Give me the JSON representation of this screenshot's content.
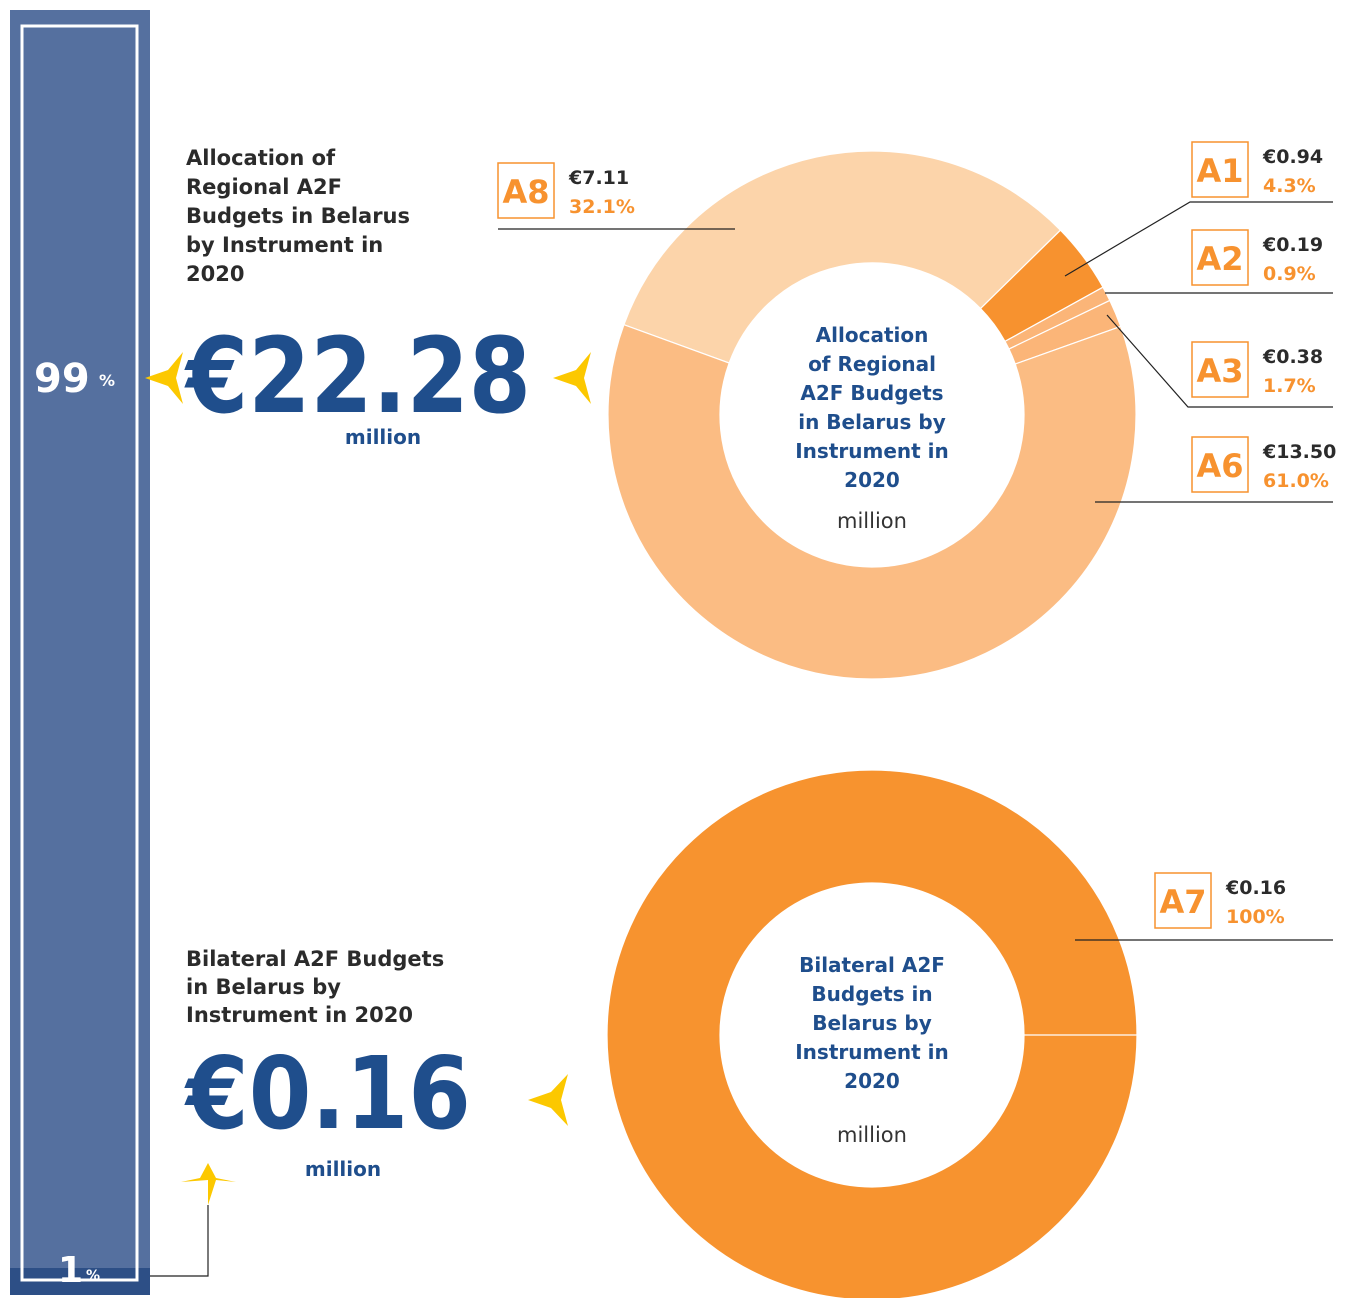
{
  "sidebar": {
    "top_value": "99",
    "top_unit": "%",
    "bottom_value": "1",
    "bottom_unit": "%"
  },
  "summaries": [
    {
      "heading_lines": [
        "Allocation of",
        "Regional A2F",
        "Budgets in Belarus",
        "by Instrument in",
        "2020"
      ],
      "amount": "€22.28",
      "unit": "million"
    },
    {
      "heading_lines": [
        "Bilateral A2F Budgets",
        "in Belarus by",
        "Instrument in 2020"
      ],
      "amount": "€0.16",
      "unit": "million"
    }
  ],
  "chart_data": [
    {
      "type": "pie",
      "donut": true,
      "title_lines": [
        "Allocation",
        "of Regional",
        "A2F Budgets",
        "in Belarus by",
        "Instrument in",
        "2020"
      ],
      "center_unit": "million",
      "categories": [
        "A8",
        "A1",
        "A2",
        "A3",
        "A6"
      ],
      "values": [
        32.1,
        4.3,
        0.9,
        1.7,
        61.0
      ],
      "value_labels": [
        "32.1%",
        "4.3%",
        "0.9%",
        "1.7%",
        "61.0%"
      ],
      "amount_labels": [
        "€7.11",
        "€0.94",
        "€0.19",
        "€0.38",
        "€13.50"
      ],
      "colors": [
        "#fcd4aa",
        "#f7922f",
        "#fbb578",
        "#fbb578",
        "#fbbc83"
      ]
    },
    {
      "type": "pie",
      "donut": true,
      "title_lines": [
        "Bilateral A2F",
        "Budgets in",
        "Belarus by",
        "Instrument in",
        "2020"
      ],
      "center_unit": "million",
      "categories": [
        "A7"
      ],
      "values": [
        100
      ],
      "value_labels": [
        "100%"
      ],
      "amount_labels": [
        "€0.16"
      ],
      "colors": [
        "#f7932f"
      ]
    }
  ]
}
